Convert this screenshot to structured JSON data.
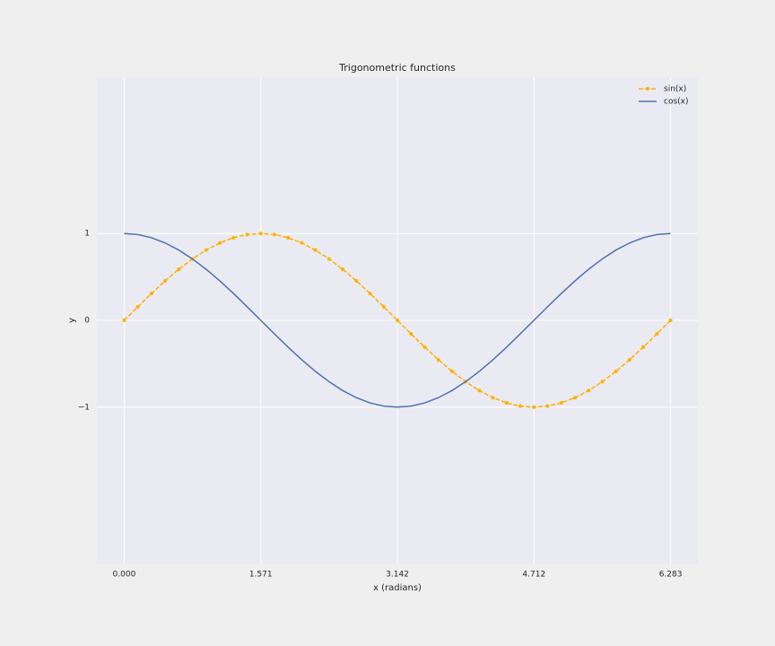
{
  "chart_data": {
    "type": "line",
    "title": "Trigonometric functions",
    "xlabel": "x (radians)",
    "ylabel": "y",
    "x": [
      0,
      0.157,
      0.314,
      0.471,
      0.628,
      0.785,
      0.942,
      1.1,
      1.257,
      1.414,
      1.571,
      1.728,
      1.885,
      2.042,
      2.199,
      2.356,
      2.513,
      2.67,
      2.827,
      2.985,
      3.142,
      3.299,
      3.456,
      3.613,
      3.77,
      3.927,
      4.084,
      4.241,
      4.398,
      4.555,
      4.712,
      4.869,
      5.027,
      5.184,
      5.341,
      5.498,
      5.655,
      5.812,
      5.969,
      6.126,
      6.283
    ],
    "series": [
      {
        "name": "sin(x)",
        "color": "#ffb000",
        "linestyle": "dashed",
        "marker": true,
        "values": [
          0,
          0.156,
          0.309,
          0.454,
          0.588,
          0.707,
          0.809,
          0.891,
          0.951,
          0.988,
          1,
          0.988,
          0.951,
          0.891,
          0.809,
          0.707,
          0.588,
          0.454,
          0.309,
          0.156,
          0,
          -0.156,
          -0.309,
          -0.454,
          -0.588,
          -0.707,
          -0.809,
          -0.891,
          -0.951,
          -0.988,
          -1,
          -0.988,
          -0.951,
          -0.891,
          -0.809,
          -0.707,
          -0.588,
          -0.454,
          -0.309,
          -0.156,
          0
        ]
      },
      {
        "name": "cos(x)",
        "color": "#4c72b0",
        "linestyle": "solid",
        "marker": false,
        "values": [
          1,
          0.988,
          0.951,
          0.891,
          0.809,
          0.707,
          0.588,
          0.454,
          0.309,
          0.156,
          0,
          -0.156,
          -0.309,
          -0.454,
          -0.588,
          -0.707,
          -0.809,
          -0.891,
          -0.951,
          -0.988,
          -1,
          -0.988,
          -0.951,
          -0.891,
          -0.809,
          -0.707,
          -0.588,
          -0.454,
          -0.309,
          -0.156,
          0,
          0.156,
          0.309,
          0.454,
          0.588,
          0.707,
          0.809,
          0.891,
          0.951,
          0.988,
          1
        ]
      }
    ],
    "xlim": [
      -0.314,
      6.597
    ],
    "ylim": [
      -2.8,
      2.8
    ],
    "xticks": [
      {
        "value": 0,
        "label": "0.000"
      },
      {
        "value": 1.5708,
        "label": "1.571"
      },
      {
        "value": 3.1416,
        "label": "3.142"
      },
      {
        "value": 4.7124,
        "label": "4.712"
      },
      {
        "value": 6.2832,
        "label": "6.283"
      }
    ],
    "yticks": [
      {
        "value": -1,
        "label": "−1"
      },
      0,
      1
    ],
    "grid": true,
    "legend": "upper right"
  }
}
